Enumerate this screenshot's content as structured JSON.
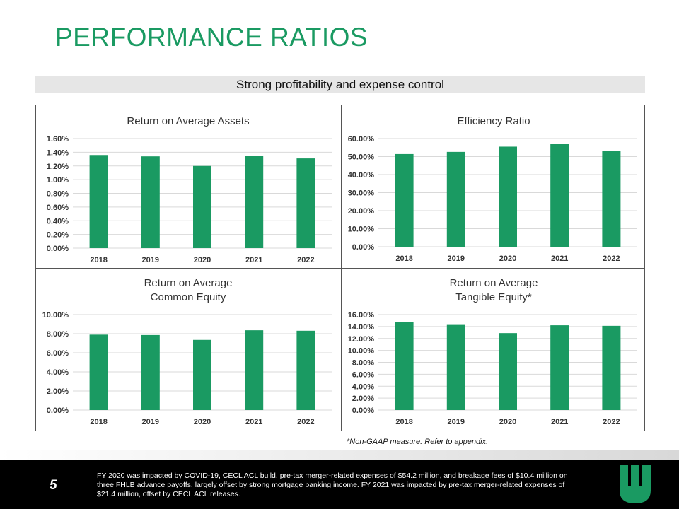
{
  "page": {
    "title": "PERFORMANCE RATIOS",
    "subtitle": "Strong profitability and expense control",
    "footnote": "*Non-GAAP measure.  Refer to appendix.",
    "page_number": "5",
    "footer_note": "FY 2020 was impacted by COVID-19, CECL ACL build, pre-tax merger-related expenses of $54.2 million, and breakage fees of $10.4 million on three FHLB advance payoffs, largely offset by strong mortgage banking income. FY 2021 was impacted by pre-tax merger-related expenses of $21.4 million, offset by CECL ACL releases.",
    "colors": {
      "accent": "#1a9a62",
      "bar": "#1a9a62",
      "footer_bg": "#000000",
      "band": "#e6e6e6"
    },
    "logo_icon": "bank-logo-icon"
  },
  "chart_data": [
    {
      "type": "bar",
      "title": [
        "Return on Average Assets"
      ],
      "categories": [
        "2018",
        "2019",
        "2020",
        "2021",
        "2022"
      ],
      "values": [
        1.36,
        1.34,
        1.2,
        1.35,
        1.31
      ],
      "ylim": [
        0,
        1.6
      ],
      "ticks": [
        "0.00%",
        "0.20%",
        "0.40%",
        "0.60%",
        "0.80%",
        "1.00%",
        "1.20%",
        "1.40%",
        "1.60%"
      ],
      "tick_values": [
        0,
        0.2,
        0.4,
        0.6,
        0.8,
        1.0,
        1.2,
        1.4,
        1.6
      ],
      "grid": true
    },
    {
      "type": "bar",
      "title": [
        "Efficiency Ratio"
      ],
      "categories": [
        "2018",
        "2019",
        "2020",
        "2021",
        "2022"
      ],
      "values": [
        51.4,
        52.6,
        55.5,
        56.9,
        53.0
      ],
      "ylim": [
        0,
        60
      ],
      "ticks": [
        "0.00%",
        "10.00%",
        "20.00%",
        "30.00%",
        "40.00%",
        "50.00%",
        "60.00%"
      ],
      "tick_values": [
        0,
        10,
        20,
        30,
        40,
        50,
        60
      ],
      "grid": true
    },
    {
      "type": "bar",
      "title": [
        "Return on Average",
        "Common Equity"
      ],
      "categories": [
        "2018",
        "2019",
        "2020",
        "2021",
        "2022"
      ],
      "values": [
        7.9,
        7.86,
        7.35,
        8.36,
        8.31
      ],
      "ylim": [
        0,
        10
      ],
      "ticks": [
        "0.00%",
        "2.00%",
        "4.00%",
        "6.00%",
        "8.00%",
        "10.00%"
      ],
      "tick_values": [
        0,
        2,
        4,
        6,
        8,
        10
      ],
      "grid": true
    },
    {
      "type": "bar",
      "title": [
        "Return on Average",
        "Tangible Equity*"
      ],
      "categories": [
        "2018",
        "2019",
        "2020",
        "2021",
        "2022"
      ],
      "values": [
        14.7,
        14.27,
        12.9,
        14.21,
        14.12
      ],
      "ylim": [
        0,
        16
      ],
      "ticks": [
        "0.00%",
        "2.00%",
        "4.00%",
        "6.00%",
        "8.00%",
        "10.00%",
        "12.00%",
        "14.00%",
        "16.00%"
      ],
      "tick_values": [
        0,
        2,
        4,
        6,
        8,
        10,
        12,
        14,
        16
      ],
      "grid": true
    }
  ]
}
